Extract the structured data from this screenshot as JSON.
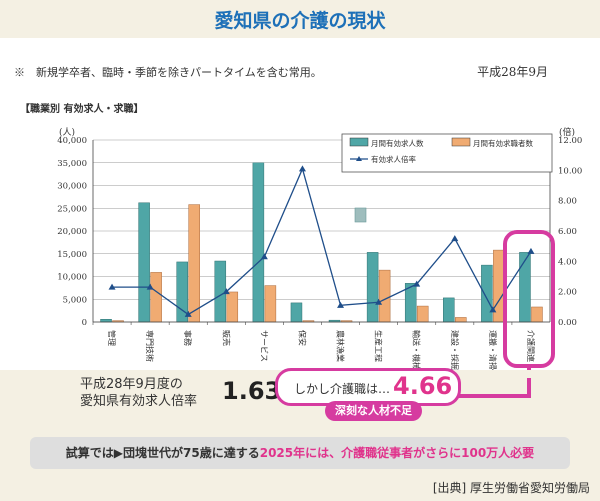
{
  "title": "愛知県の介護の現状",
  "footnote": "※　新規学卒者、臨時・季節を除きパートタイムを含む常用。",
  "date": "平成28年9月",
  "ratio_label_line1": "平成28年9月度の",
  "ratio_label_line2": "愛知県有効求人倍率",
  "ratio_value": "1.63",
  "callout_prefix": "しかし介護職は…",
  "callout_value": "4.66",
  "callout_badge": "深刻な人材不足",
  "bottom_note_part1": "試算では▶団塊世代が75歳に達する",
  "bottom_note_part2": "2025年には、介護職従事者がさらに100万人必要",
  "source": "[出典] 厚生労働省愛知労働局",
  "chart_data": {
    "type": "bar",
    "title": "【職業別 有効求人・求職】",
    "ylabel_left": "(人)",
    "ylabel_right": "(倍)",
    "ylim_left": [
      0,
      40000
    ],
    "ylim_right": [
      0,
      12
    ],
    "yticks_left": [
      "0",
      "5,000",
      "10,000",
      "15,000",
      "20,000",
      "25,000",
      "30,000",
      "35,000",
      "40,000"
    ],
    "yticks_right": [
      "0.00",
      "2.00",
      "4.00",
      "6.00",
      "8.00",
      "10.00",
      "12.00"
    ],
    "categories": [
      "管理",
      "専門技術",
      "事務",
      "販売",
      "サービス",
      "保安",
      "農林漁業",
      "生産工程",
      "輸送・機械運転",
      "建設・採掘",
      "運搬・清掃等",
      "介護関連"
    ],
    "series": [
      {
        "name": "月間有効求人数",
        "type": "bar",
        "axis": "left",
        "color": "#4fa6a6",
        "values": [
          600,
          26200,
          13200,
          13400,
          35000,
          4200,
          400,
          15300,
          8500,
          5300,
          12500,
          15300
        ]
      },
      {
        "name": "月間有効求職者数",
        "type": "bar",
        "axis": "left",
        "color": "#f0ab72",
        "values": [
          300,
          10900,
          25800,
          6600,
          8000,
          300,
          300,
          11400,
          3500,
          1000,
          15800,
          3300
        ]
      },
      {
        "name": "有効求人倍率",
        "type": "line",
        "axis": "right",
        "color": "#1f4e8a",
        "values": [
          2.3,
          2.3,
          0.5,
          2.0,
          4.3,
          10.1,
          1.1,
          1.3,
          2.5,
          5.5,
          0.8,
          4.66
        ]
      }
    ],
    "legend_position": "top-right",
    "grid": "horizontal"
  }
}
